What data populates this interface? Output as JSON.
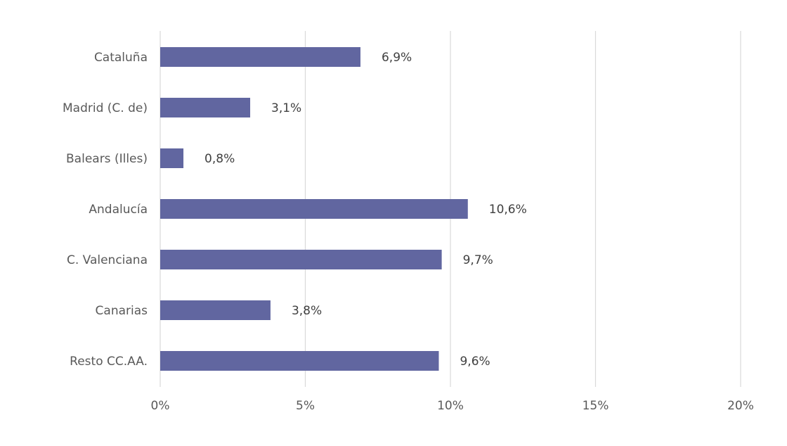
{
  "chart_data": {
    "type": "bar",
    "orientation": "horizontal",
    "categories": [
      "Cataluña",
      "Madrid (C. de)",
      "Balears (Illes)",
      "Andalucía",
      "C. Valenciana",
      "Canarias",
      "Resto CC.AA."
    ],
    "values": [
      6.9,
      3.1,
      0.8,
      10.6,
      9.7,
      3.8,
      9.6
    ],
    "data_labels": [
      "6,9%",
      "3,1%",
      "0,8%",
      "10,6%",
      "9,7%",
      "3,8%",
      "9,6%"
    ],
    "x_ticks": [
      0,
      5,
      10,
      15,
      20
    ],
    "x_tick_labels": [
      "0%",
      "5%",
      "10%",
      "15%",
      "20%"
    ],
    "xlim": [
      0,
      20
    ],
    "grid": true,
    "legend": "none",
    "bar_color": "#6166a0"
  }
}
